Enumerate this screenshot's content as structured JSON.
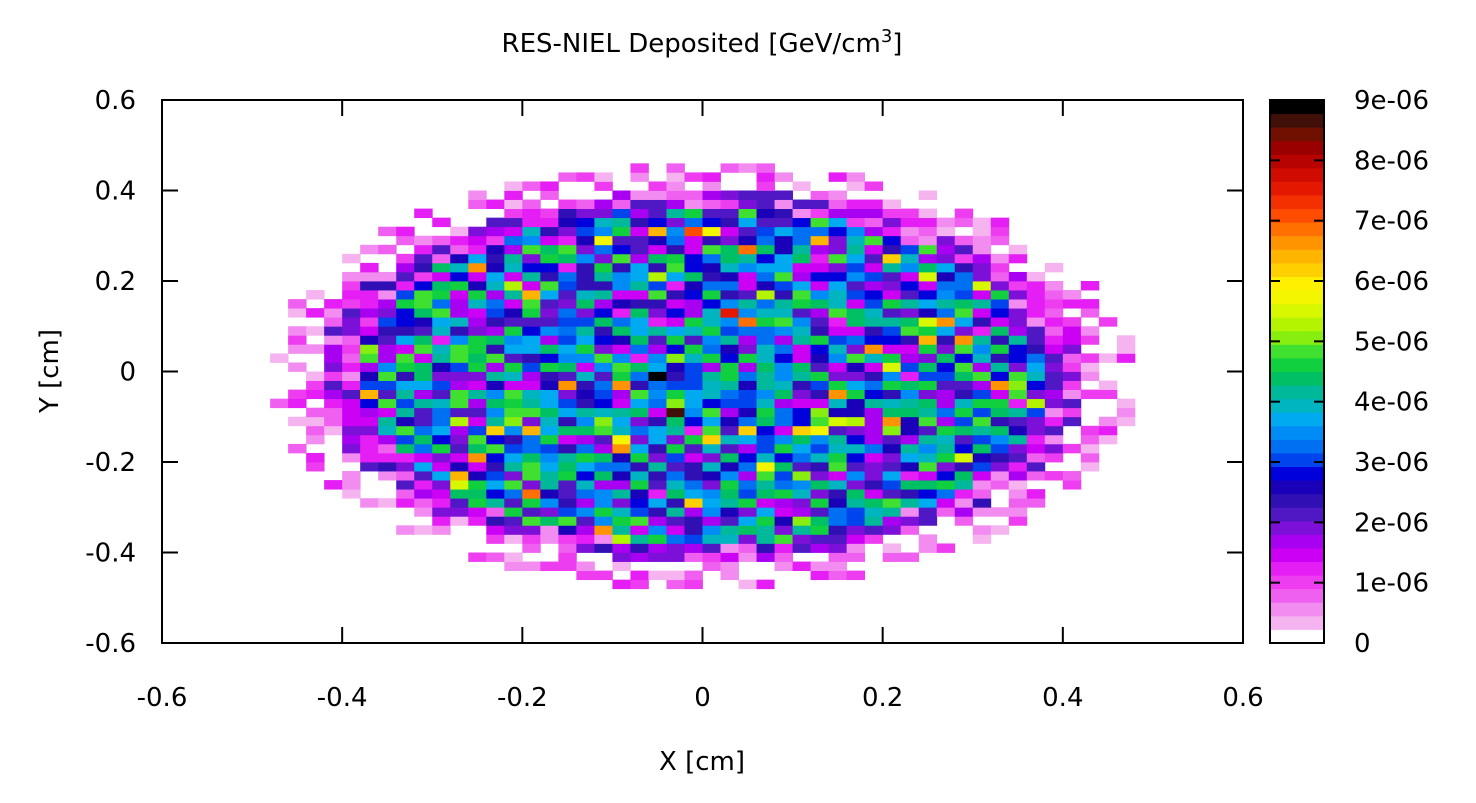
{
  "chart_data": {
    "type": "heatmap",
    "title": "RES-NIEL Deposited [GeV/cm",
    "title_sup": "3",
    "title_end": "]",
    "xlabel": "X [cm]",
    "ylabel": "Y [cm]",
    "xlim": [
      -0.6,
      0.6
    ],
    "ylim": [
      -0.6,
      0.6
    ],
    "x_ticks": [
      "-0.6",
      "-0.4",
      "-0.2",
      "0",
      "0.2",
      "0.4",
      "0.6"
    ],
    "y_ticks": [
      "-0.6",
      "-0.4",
      "-0.2",
      "0",
      "0.2",
      "0.4",
      "0.6"
    ],
    "colorbar": {
      "range": [
        0,
        9e-06
      ],
      "ticks": [
        "0",
        "1e-06",
        "2e-06",
        "3e-06",
        "4e-06",
        "5e-06",
        "6e-06",
        "7e-06",
        "8e-06",
        "9e-06"
      ],
      "palette": [
        "#ffffff",
        "#f5b3f0",
        "#f28cf0",
        "#f060f0",
        "#ee3cf0",
        "#e41ef4",
        "#cc00f5",
        "#a800f0",
        "#7c10d8",
        "#5018c4",
        "#3010b4",
        "#1a00b8",
        "#0000dd",
        "#0044ee",
        "#0070f2",
        "#008cf6",
        "#00aaf0",
        "#00b4c0",
        "#00b89a",
        "#00c064",
        "#10d040",
        "#40e030",
        "#88ee10",
        "#b4f400",
        "#d8f800",
        "#f4f600",
        "#fff000",
        "#ffd000",
        "#ffb400",
        "#ff9400",
        "#ff7000",
        "#ff4c00",
        "#f43000",
        "#e41800",
        "#d00c00",
        "#b80400",
        "#9a0000",
        "#701000",
        "#401008",
        "#000000"
      ]
    },
    "bins": {
      "x_min": -0.5,
      "x_max": 0.5,
      "y_min": -0.5,
      "y_max": 0.5,
      "bin_width": 0.02,
      "ellipse_rx": 0.455,
      "ellipse_ry": 0.445,
      "ellipse_cy": -0.01
    },
    "peak_bins": [
      {
        "x": -0.05,
        "y": -0.01,
        "value": 9e-06
      },
      {
        "x": -0.03,
        "y": -0.09,
        "value": 8.7e-06
      },
      {
        "x": 0.03,
        "y": 0.13,
        "value": 7.5e-06
      },
      {
        "x": -0.01,
        "y": 0.31,
        "value": 7e-06
      },
      {
        "x": -0.19,
        "y": -0.27,
        "value": 6.8e-06
      },
      {
        "x": -0.19,
        "y": 0.17,
        "value": 6.5e-06
      },
      {
        "x": 0.05,
        "y": 0.11,
        "value": 6.8e-06
      },
      {
        "x": -0.15,
        "y": -0.03,
        "value": 6.7e-06
      }
    ]
  }
}
